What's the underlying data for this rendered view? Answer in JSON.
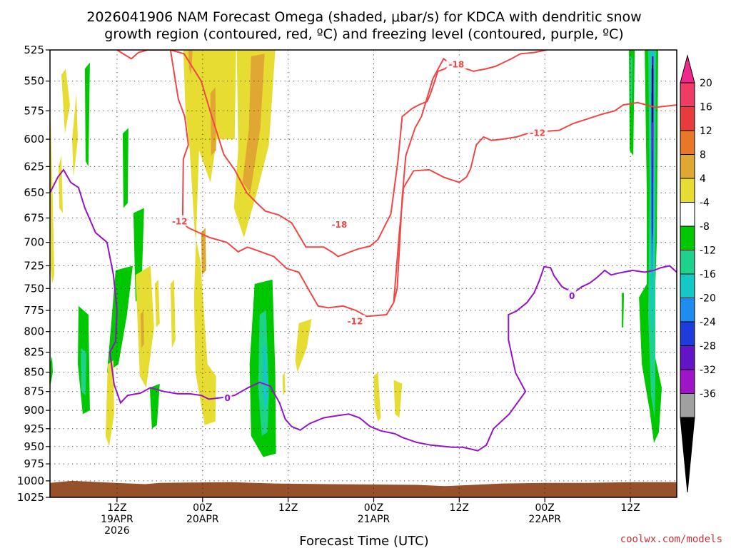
{
  "chart_data": {
    "type": "time-height cross section",
    "title_lines": [
      "2026041906 NAM Forecast Omega (shaded, μbar/s) for KDCA with dendritic snow",
      "growth region (contoured, red, ºC) and freezing level (contoured, purple, ºC)"
    ],
    "xlabel": "Forecast Time (UTC)",
    "credit": "coolwx.com/models",
    "x_range_hours": [
      -3.4,
      84.5
    ],
    "y_scale": "log-pressure",
    "y_range_mb": [
      1025,
      525
    ],
    "y_ticks": [
      525,
      550,
      575,
      600,
      625,
      650,
      675,
      700,
      725,
      750,
      775,
      800,
      825,
      850,
      875,
      900,
      925,
      950,
      975,
      1000,
      1025
    ],
    "y_tick_labels": [
      "525",
      "550",
      "575",
      "600",
      "625",
      "650",
      "675",
      "700",
      "725",
      "750",
      "775",
      "800",
      "825",
      "850",
      "875",
      "900",
      "925",
      "950",
      "975",
      "1000",
      "1025"
    ],
    "x_ticks": [
      {
        "hour": 6,
        "labels": [
          "12Z",
          "19APR",
          "2026"
        ]
      },
      {
        "hour": 18,
        "labels": [
          "00Z",
          "20APR"
        ]
      },
      {
        "hour": 30,
        "labels": [
          "12Z"
        ]
      },
      {
        "hour": 42,
        "labels": [
          "00Z",
          "21APR"
        ]
      },
      {
        "hour": 54,
        "labels": [
          "12Z"
        ]
      },
      {
        "hour": 66,
        "labels": [
          "00Z",
          "22APR"
        ]
      },
      {
        "hour": 78,
        "labels": [
          "12Z"
        ]
      }
    ],
    "grid": "dotted",
    "colorbar": {
      "labels": [
        "20",
        "16",
        "12",
        "8",
        "4",
        "-4",
        "-8",
        "-12",
        "-16",
        "-20",
        "-24",
        "-28",
        "-32",
        "-36"
      ],
      "bins": [
        {
          "color": "#f03c64"
        },
        {
          "color": "#e83c3c"
        },
        {
          "color": "#e87828"
        },
        {
          "color": "#e0a832"
        },
        {
          "color": "#e6dc32"
        },
        {
          "color": "#ffffff"
        },
        {
          "color": "#00c800"
        },
        {
          "color": "#1ed28c"
        },
        {
          "color": "#14c8c8"
        },
        {
          "color": "#1e8cf0"
        },
        {
          "color": "#1e3cdc"
        },
        {
          "color": "#6414c8"
        },
        {
          "color": "#a014c8"
        },
        {
          "color": "#a0a0a0"
        }
      ],
      "top_arrow_color": "#f0288c",
      "bottom_arrow_color": "#000000"
    },
    "contours": {
      "red": {
        "color": "#f04646",
        "labels": [
          {
            "text": "-18",
            "x": 53.6,
            "p": 536
          },
          {
            "text": "-18",
            "x": 37.2,
            "p": 681
          },
          {
            "text": "-12",
            "x": 65.0,
            "p": 594
          },
          {
            "text": "-12",
            "x": 14.8,
            "p": 678
          },
          {
            "text": "-12",
            "x": 39.4,
            "p": 787
          }
        ]
      },
      "purple": {
        "color": "#9614c8",
        "labels": [
          {
            "text": "0",
            "x": 21.5,
            "p": 883
          },
          {
            "text": "0",
            "x": 69.8,
            "p": 758
          }
        ]
      }
    },
    "terrain_color": "#96502a"
  }
}
